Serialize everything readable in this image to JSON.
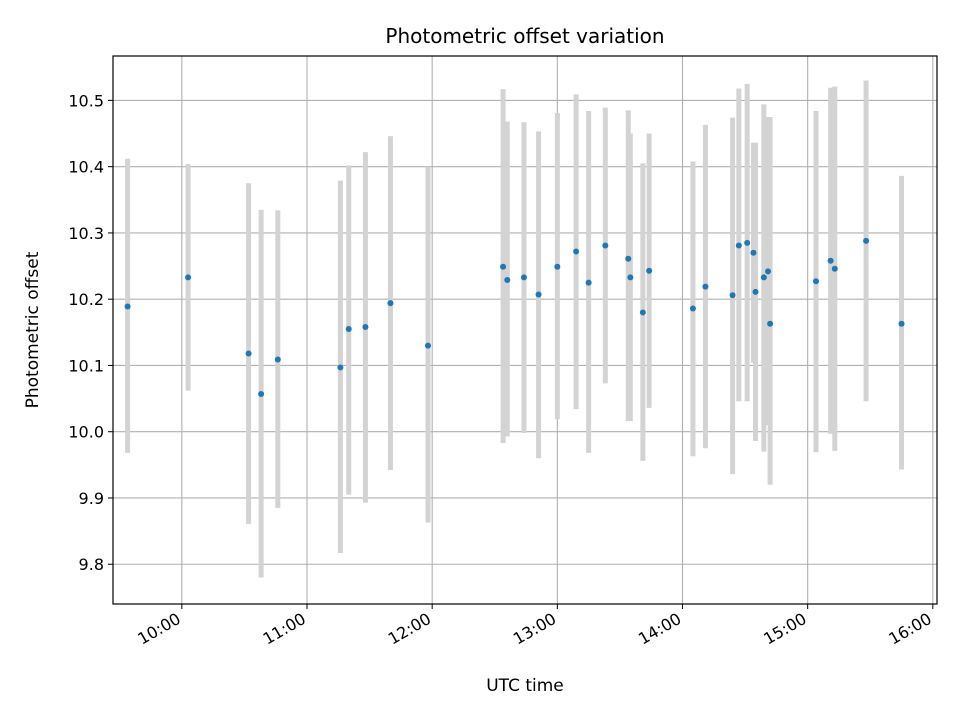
{
  "chart_data": {
    "type": "scatter",
    "title": "Photometric offset variation",
    "xlabel": "UTC time",
    "ylabel": "Photometric offset",
    "x_axis_type": "time",
    "xlim": [
      "09:27",
      "16:02"
    ],
    "ylim": [
      9.74,
      10.567
    ],
    "x_ticks": [
      "10:00",
      "11:00",
      "12:00",
      "13:00",
      "14:00",
      "15:00",
      "16:00"
    ],
    "y_ticks": [
      9.8,
      9.9,
      10.0,
      10.1,
      10.2,
      10.3,
      10.4,
      10.5
    ],
    "y_tick_labels": [
      "9.8",
      "9.9",
      "10.0",
      "10.1",
      "10.2",
      "10.3",
      "10.4",
      "10.5"
    ],
    "grid": true,
    "colors": {
      "point": "#1f77b4",
      "errorbar": "#d3d3d3",
      "grid": "#b0b0b0"
    },
    "points": [
      {
        "t": "09:34",
        "y": 10.189,
        "lo": 9.968,
        "hi": 10.412
      },
      {
        "t": "10:03",
        "y": 10.233,
        "lo": 10.062,
        "hi": 10.404
      },
      {
        "t": "10:32",
        "y": 10.118,
        "lo": 9.861,
        "hi": 10.375
      },
      {
        "t": "10:38",
        "y": 10.057,
        "lo": 9.78,
        "hi": 10.335
      },
      {
        "t": "10:46",
        "y": 10.109,
        "lo": 9.885,
        "hi": 10.334
      },
      {
        "t": "11:16",
        "y": 10.097,
        "lo": 9.817,
        "hi": 10.379
      },
      {
        "t": "11:20",
        "y": 10.155,
        "lo": 9.905,
        "hi": 10.402
      },
      {
        "t": "11:28",
        "y": 10.158,
        "lo": 9.893,
        "hi": 10.422
      },
      {
        "t": "11:40",
        "y": 10.194,
        "lo": 9.942,
        "hi": 10.446
      },
      {
        "t": "11:58",
        "y": 10.13,
        "lo": 9.863,
        "hi": 10.4
      },
      {
        "t": "12:34",
        "y": 10.249,
        "lo": 9.983,
        "hi": 10.517
      },
      {
        "t": "12:36",
        "y": 10.229,
        "lo": 9.993,
        "hi": 10.468
      },
      {
        "t": "12:44",
        "y": 10.233,
        "lo": 9.998,
        "hi": 10.467
      },
      {
        "t": "12:51",
        "y": 10.207,
        "lo": 9.96,
        "hi": 10.453
      },
      {
        "t": "13:00",
        "y": 10.249,
        "lo": 10.019,
        "hi": 10.481
      },
      {
        "t": "13:09",
        "y": 10.272,
        "lo": 10.034,
        "hi": 10.509
      },
      {
        "t": "13:15",
        "y": 10.225,
        "lo": 9.968,
        "hi": 10.484
      },
      {
        "t": "13:23",
        "y": 10.281,
        "lo": 10.073,
        "hi": 10.489
      },
      {
        "t": "13:34",
        "y": 10.261,
        "lo": 10.016,
        "hi": 10.485
      },
      {
        "t": "13:35",
        "y": 10.233,
        "lo": 10.016,
        "hi": 10.45
      },
      {
        "t": "13:41",
        "y": 10.18,
        "lo": 9.956,
        "hi": 10.405
      },
      {
        "t": "13:44",
        "y": 10.243,
        "lo": 10.036,
        "hi": 10.45
      },
      {
        "t": "14:05",
        "y": 10.186,
        "lo": 9.963,
        "hi": 10.408
      },
      {
        "t": "14:11",
        "y": 10.219,
        "lo": 9.975,
        "hi": 10.463
      },
      {
        "t": "14:24",
        "y": 10.206,
        "lo": 9.936,
        "hi": 10.474
      },
      {
        "t": "14:27",
        "y": 10.281,
        "lo": 10.046,
        "hi": 10.518
      },
      {
        "t": "14:31",
        "y": 10.285,
        "lo": 10.046,
        "hi": 10.525
      },
      {
        "t": "14:34",
        "y": 10.27,
        "lo": 10.104,
        "hi": 10.436
      },
      {
        "t": "14:35",
        "y": 10.211,
        "lo": 9.986,
        "hi": 10.436
      },
      {
        "t": "14:39",
        "y": 10.233,
        "lo": 9.97,
        "hi": 10.494
      },
      {
        "t": "14:41",
        "y": 10.242,
        "lo": 10.01,
        "hi": 10.475
      },
      {
        "t": "14:42",
        "y": 10.163,
        "lo": 9.92,
        "hi": 10.475
      },
      {
        "t": "15:04",
        "y": 10.227,
        "lo": 9.969,
        "hi": 10.484
      },
      {
        "t": "15:11",
        "y": 10.258,
        "lo": 9.997,
        "hi": 10.519
      },
      {
        "t": "15:13",
        "y": 10.246,
        "lo": 9.971,
        "hi": 10.521
      },
      {
        "t": "15:28",
        "y": 10.288,
        "lo": 10.046,
        "hi": 10.53
      },
      {
        "t": "15:45",
        "y": 10.163,
        "lo": 9.943,
        "hi": 10.386
      }
    ]
  }
}
